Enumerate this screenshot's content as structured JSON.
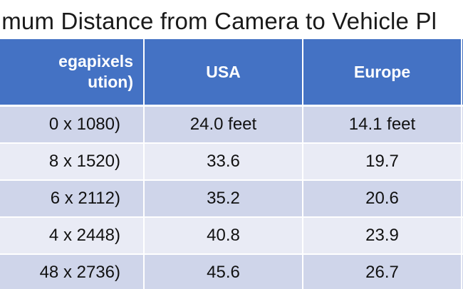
{
  "title": "ximum Distance from Camera to Vehicle Pl",
  "table": {
    "header": {
      "col0_line1": "egapixels",
      "col0_line2": "ution)",
      "col1": "USA",
      "col2": "Europe",
      "col3": ""
    },
    "rows": [
      {
        "res": "0 x 1080)",
        "usa": "24.0 feet",
        "europe": "14.1 feet",
        "extra": ""
      },
      {
        "res": "8 x 1520)",
        "usa": "33.6",
        "europe": "19.7",
        "extra": ""
      },
      {
        "res": "6 x 2112)",
        "usa": "35.2",
        "europe": "20.6",
        "extra": ""
      },
      {
        "res": "4 x 2448)",
        "usa": "40.8",
        "europe": "23.9",
        "extra": ""
      },
      {
        "res": "48 x 2736)",
        "usa": "45.6",
        "europe": "26.7",
        "extra": ""
      }
    ]
  },
  "colors": {
    "header_bg": "#4472c4",
    "row_dark": "#cfd5ea",
    "row_light": "#e9ebf5"
  }
}
